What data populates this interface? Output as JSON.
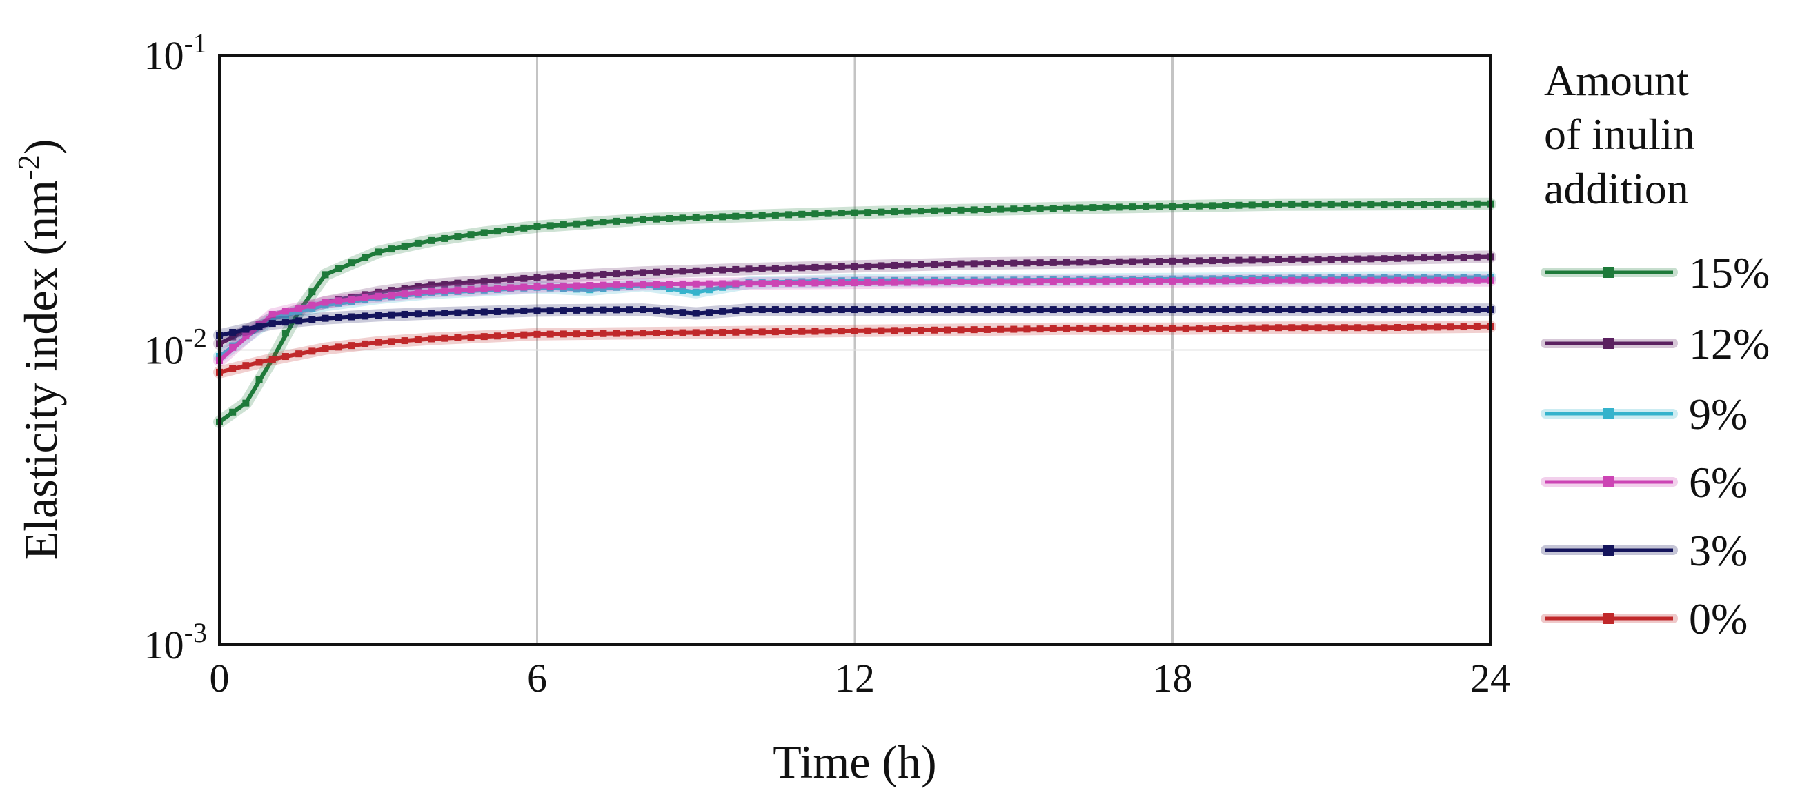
{
  "chart_data": {
    "type": "line",
    "title": "",
    "xlabel": "Time (h)",
    "ylabel": "Elasticity index (nm",
    "ylabel_sup": "-2",
    "ylabel_close": ")",
    "xlim": [
      0,
      24
    ],
    "ylim": [
      0.001,
      0.1
    ],
    "yscale": "log",
    "x_ticks": [
      0,
      6,
      12,
      18,
      24
    ],
    "x_tick_labels": [
      "0",
      "6",
      "12",
      "18",
      "24"
    ],
    "y_ticks": [
      {
        "value": 0.1,
        "base": "10",
        "exp": "-1"
      },
      {
        "value": 0.01,
        "base": "10",
        "exp": "-2"
      },
      {
        "value": 0.001,
        "base": "10",
        "exp": "-3"
      }
    ],
    "grid": "vertical",
    "legend_title": [
      "Amount",
      "of inulin",
      "addition"
    ],
    "legend_position": "right",
    "series": [
      {
        "name": "15%",
        "color": "#1e7a3a",
        "x": [
          0,
          0.5,
          1,
          1.5,
          2,
          3,
          4,
          5,
          6,
          8,
          10,
          12,
          14,
          16,
          18,
          20,
          22,
          24
        ],
        "y": [
          0.0057,
          0.0066,
          0.0093,
          0.0135,
          0.018,
          0.0215,
          0.0235,
          0.025,
          0.0262,
          0.0277,
          0.0285,
          0.0292,
          0.0298,
          0.0303,
          0.0307,
          0.0311,
          0.0312,
          0.0313
        ]
      },
      {
        "name": "12%",
        "color": "#5b2160",
        "x": [
          0,
          1,
          2,
          3,
          4,
          6,
          8,
          10,
          12,
          14,
          16,
          18,
          20,
          22,
          24
        ],
        "y": [
          0.0105,
          0.0128,
          0.0145,
          0.0157,
          0.0166,
          0.0176,
          0.0183,
          0.0188,
          0.0192,
          0.0196,
          0.0198,
          0.02,
          0.0202,
          0.0204,
          0.0207
        ]
      },
      {
        "name": "9%",
        "color": "#35b3cc",
        "x": [
          0,
          1,
          2,
          3,
          4,
          6,
          7,
          8,
          9,
          10,
          12,
          14,
          16,
          18,
          20,
          22,
          24
        ],
        "y": [
          0.0095,
          0.0128,
          0.0142,
          0.015,
          0.0156,
          0.0163,
          0.016,
          0.0166,
          0.0157,
          0.0169,
          0.0172,
          0.0172,
          0.0173,
          0.0174,
          0.0175,
          0.0176,
          0.0176
        ]
      },
      {
        "name": "6%",
        "color": "#cc44b4",
        "x": [
          0,
          1,
          2,
          3,
          4,
          6,
          8,
          10,
          12,
          14,
          16,
          18,
          20,
          22,
          24
        ],
        "y": [
          0.0092,
          0.0132,
          0.0145,
          0.0152,
          0.0158,
          0.0164,
          0.0167,
          0.0168,
          0.0169,
          0.017,
          0.0171,
          0.0171,
          0.0172,
          0.0172,
          0.0172
        ]
      },
      {
        "name": "3%",
        "color": "#14145c",
        "x": [
          0,
          1,
          2,
          3,
          4,
          6,
          8,
          9,
          10,
          12,
          14,
          16,
          18,
          20,
          22,
          24
        ],
        "y": [
          0.0112,
          0.0123,
          0.0128,
          0.0131,
          0.0133,
          0.0136,
          0.0137,
          0.0133,
          0.0137,
          0.0137,
          0.0137,
          0.0137,
          0.0137,
          0.0137,
          0.0137,
          0.0137
        ]
      },
      {
        "name": "0%",
        "color": "#c0282a",
        "x": [
          0,
          1,
          2,
          3,
          4,
          6,
          8,
          10,
          12,
          14,
          16,
          18,
          20,
          22,
          24
        ],
        "y": [
          0.0084,
          0.0093,
          0.0101,
          0.0106,
          0.0109,
          0.0113,
          0.0114,
          0.0115,
          0.0116,
          0.0117,
          0.0118,
          0.0118,
          0.0119,
          0.0119,
          0.012
        ]
      }
    ]
  }
}
